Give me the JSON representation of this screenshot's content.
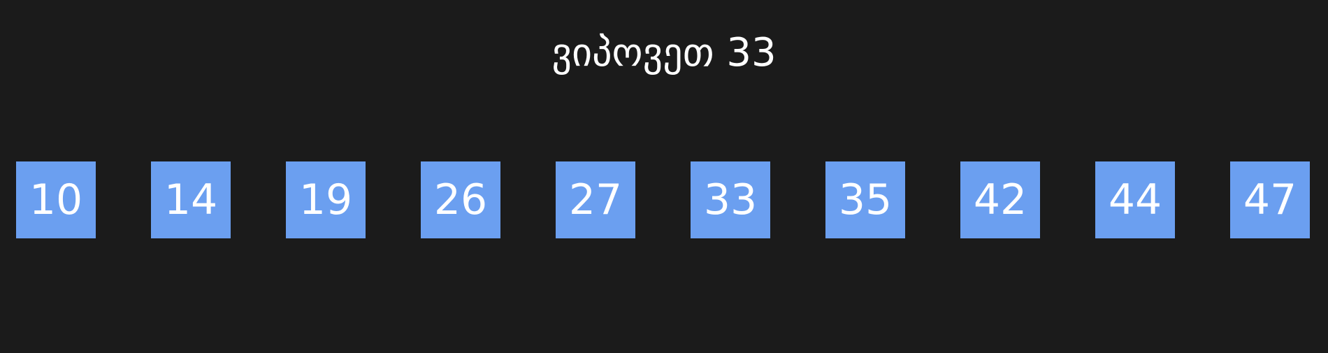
{
  "title": "ვიპოვეთ 33",
  "colors": {
    "background": "#1b1b1b",
    "cell_fill": "#6b9ff0",
    "text": "#ffffff"
  },
  "array": [
    {
      "value": "10"
    },
    {
      "value": "14"
    },
    {
      "value": "19"
    },
    {
      "value": "26"
    },
    {
      "value": "27"
    },
    {
      "value": "33"
    },
    {
      "value": "35"
    },
    {
      "value": "42"
    },
    {
      "value": "44"
    },
    {
      "value": "47"
    }
  ]
}
